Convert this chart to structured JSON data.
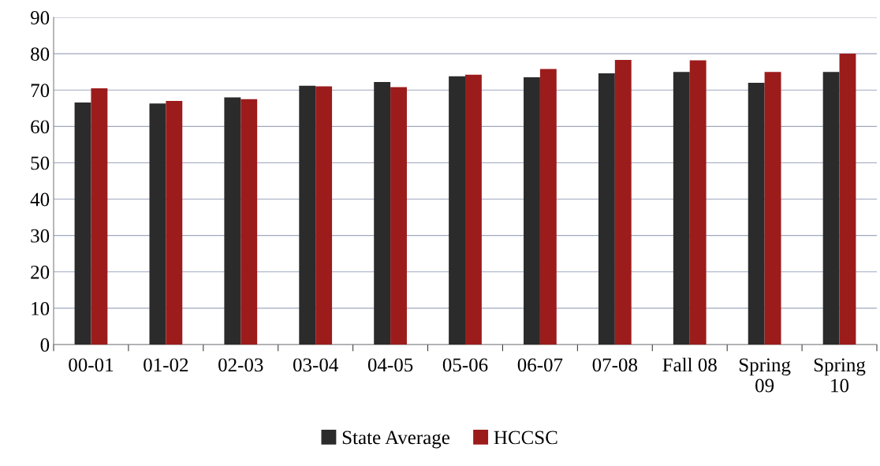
{
  "chart_data": {
    "type": "bar",
    "categories": [
      "00-01",
      "01-02",
      "02-03",
      "03-04",
      "04-05",
      "05-06",
      "06-07",
      "07-08",
      "Fall 08",
      "Spring\n09",
      "Spring\n10"
    ],
    "series": [
      {
        "name": "State Average",
        "color": "#2b2b2b",
        "values": [
          66.6,
          66.3,
          68.0,
          71.2,
          72.2,
          73.8,
          73.5,
          74.6,
          75.0,
          72.0,
          75.0
        ]
      },
      {
        "name": "HCCSC",
        "color": "#9c1c1c",
        "values": [
          70.5,
          67.0,
          67.5,
          71.0,
          70.8,
          74.2,
          75.8,
          78.3,
          78.2,
          75.0,
          80.0
        ]
      }
    ],
    "ylim": [
      0,
      90
    ],
    "yticks": [
      0,
      10,
      20,
      30,
      40,
      50,
      60,
      70,
      80,
      90
    ],
    "grid": "y",
    "legend": "bottom"
  }
}
